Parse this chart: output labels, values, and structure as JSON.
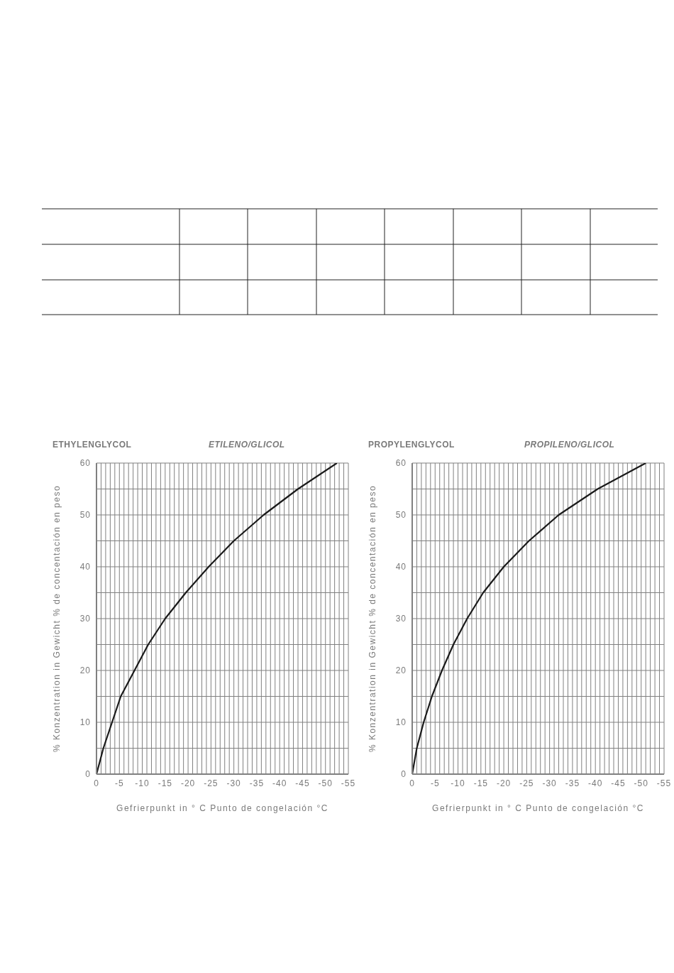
{
  "chart_data": [
    {
      "type": "line",
      "title": "ETHYLENGLYCOL",
      "subtitle": "ETILENO/GLICOL",
      "xlabel": "Gefrierpunkt in ° C     Punto de congelación   °C",
      "ylabel": "% Konzentration in Gewicht     % de concentación en peso",
      "grid": true,
      "line_style": "solid",
      "series": [
        {
          "color": "#1a1a1a",
          "x": [
            0,
            -1.5,
            -3.4,
            -5.3,
            -8.3,
            -11.3,
            -15,
            -19.5,
            -24.5,
            -30,
            -36.5,
            -44,
            -52.5
          ],
          "values": [
            0,
            5,
            10,
            15,
            20,
            25,
            30,
            35,
            40,
            45,
            50,
            55,
            60
          ]
        }
      ],
      "xlim": [
        0,
        -55
      ],
      "xticks": [
        0,
        {
          "value": -1,
          "label": null
        },
        {
          "value": -2,
          "label": null
        },
        {
          "value": -3,
          "label": null
        },
        {
          "value": -4,
          "label": null
        },
        -5,
        {
          "value": -6,
          "label": null
        },
        {
          "value": -7,
          "label": null
        },
        {
          "value": -8,
          "label": null
        },
        {
          "value": -9,
          "label": null
        },
        -10,
        {
          "value": -11,
          "label": null
        },
        {
          "value": -12,
          "label": null
        },
        {
          "value": -13,
          "label": null
        },
        {
          "value": -14,
          "label": null
        },
        -15,
        {
          "value": -16,
          "label": null
        },
        {
          "value": -17,
          "label": null
        },
        {
          "value": -18,
          "label": null
        },
        {
          "value": -19,
          "label": null
        },
        -20,
        {
          "value": -21,
          "label": null
        },
        {
          "value": -22,
          "label": null
        },
        {
          "value": -23,
          "label": null
        },
        {
          "value": -24,
          "label": null
        },
        -25,
        {
          "value": -26,
          "label": null
        },
        {
          "value": -27,
          "label": null
        },
        {
          "value": -28,
          "label": null
        },
        {
          "value": -29,
          "label": null
        },
        -30,
        {
          "value": -31,
          "label": null
        },
        {
          "value": -32,
          "label": null
        },
        {
          "value": -33,
          "label": null
        },
        {
          "value": -34,
          "label": null
        },
        -35,
        {
          "value": -36,
          "label": null
        },
        {
          "value": -37,
          "label": null
        },
        {
          "value": -38,
          "label": null
        },
        {
          "value": -39,
          "label": null
        },
        -40,
        {
          "value": -41,
          "label": null
        },
        {
          "value": -42,
          "label": null
        },
        {
          "value": -43,
          "label": null
        },
        {
          "value": -44,
          "label": null
        },
        -45,
        {
          "value": -46,
          "label": null
        },
        {
          "value": -47,
          "label": null
        },
        {
          "value": -48,
          "label": null
        },
        {
          "value": -49,
          "label": null
        },
        -50,
        {
          "value": -51,
          "label": null
        },
        {
          "value": -52,
          "label": null
        },
        {
          "value": -53,
          "label": null
        },
        {
          "value": -54,
          "label": null
        },
        -55
      ],
      "ylim": [
        0,
        60
      ],
      "yticks": [
        0,
        {
          "value": 5,
          "label": null
        },
        10,
        {
          "value": 15,
          "label": null
        },
        20,
        {
          "value": 25,
          "label": null
        },
        30,
        {
          "value": 35,
          "label": null
        },
        40,
        {
          "value": 45,
          "label": null
        },
        50,
        {
          "value": 55,
          "label": null
        },
        60
      ]
    },
    {
      "type": "line",
      "title": "PROPYLENGLYCOL",
      "subtitle": "PROPILENO/GLICOL",
      "xlabel": "Gefrierpunkt in ° C     Punto de congelación   °C",
      "ylabel": "% Konzentration in Gewicht     % de concentación en peso",
      "grid": true,
      "line_style": "solid",
      "series": [
        {
          "color": "#1a1a1a",
          "x": [
            0,
            -1,
            -2.5,
            -4.3,
            -6.5,
            -9,
            -12,
            -15.5,
            -20,
            -25.5,
            -32,
            -40.5,
            -51
          ],
          "values": [
            0,
            5,
            10,
            15,
            20,
            25,
            30,
            35,
            40,
            45,
            50,
            55,
            60
          ]
        }
      ],
      "xlim": [
        0,
        -55
      ],
      "xticks": [
        0,
        {
          "value": -1,
          "label": null
        },
        {
          "value": -2,
          "label": null
        },
        {
          "value": -3,
          "label": null
        },
        {
          "value": -4,
          "label": null
        },
        -5,
        {
          "value": -6,
          "label": null
        },
        {
          "value": -7,
          "label": null
        },
        {
          "value": -8,
          "label": null
        },
        {
          "value": -9,
          "label": null
        },
        -10,
        {
          "value": -11,
          "label": null
        },
        {
          "value": -12,
          "label": null
        },
        {
          "value": -13,
          "label": null
        },
        {
          "value": -14,
          "label": null
        },
        -15,
        {
          "value": -16,
          "label": null
        },
        {
          "value": -17,
          "label": null
        },
        {
          "value": -18,
          "label": null
        },
        {
          "value": -19,
          "label": null
        },
        -20,
        {
          "value": -21,
          "label": null
        },
        {
          "value": -22,
          "label": null
        },
        {
          "value": -23,
          "label": null
        },
        {
          "value": -24,
          "label": null
        },
        -25,
        {
          "value": -26,
          "label": null
        },
        {
          "value": -27,
          "label": null
        },
        {
          "value": -28,
          "label": null
        },
        {
          "value": -29,
          "label": null
        },
        -30,
        {
          "value": -31,
          "label": null
        },
        {
          "value": -32,
          "label": null
        },
        {
          "value": -33,
          "label": null
        },
        {
          "value": -34,
          "label": null
        },
        -35,
        {
          "value": -36,
          "label": null
        },
        {
          "value": -37,
          "label": null
        },
        {
          "value": -38,
          "label": null
        },
        {
          "value": -39,
          "label": null
        },
        -40,
        {
          "value": -41,
          "label": null
        },
        {
          "value": -42,
          "label": null
        },
        {
          "value": -43,
          "label": null
        },
        {
          "value": -44,
          "label": null
        },
        -45,
        {
          "value": -46,
          "label": null
        },
        {
          "value": -47,
          "label": null
        },
        {
          "value": -48,
          "label": null
        },
        {
          "value": -49,
          "label": null
        },
        -50,
        {
          "value": -51,
          "label": null
        },
        {
          "value": -52,
          "label": null
        },
        {
          "value": -53,
          "label": null
        },
        {
          "value": -54,
          "label": null
        },
        -55
      ],
      "ylim": [
        0,
        60
      ],
      "yticks": [
        0,
        {
          "value": 5,
          "label": null
        },
        10,
        {
          "value": 15,
          "label": null
        },
        20,
        {
          "value": 25,
          "label": null
        },
        30,
        {
          "value": 35,
          "label": null
        },
        40,
        {
          "value": 45,
          "label": null
        },
        50,
        {
          "value": 55,
          "label": null
        },
        60
      ]
    }
  ]
}
